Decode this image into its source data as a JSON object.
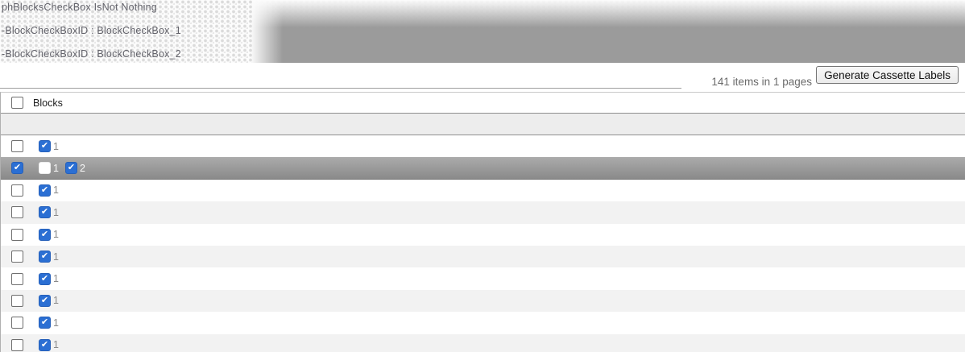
{
  "debug_panel": {
    "lines": [
      "phBlocksCheckBox IsNot Nothing",
      "-BlockCheckBoxID : BlockCheckBox_1",
      "-BlockCheckBoxID : BlockCheckBox_2"
    ]
  },
  "toolbar": {
    "pager_info": "141 items in 1 pages",
    "generate_button_label": "Generate Cassette Labels"
  },
  "grid": {
    "header": {
      "column_label": "Blocks",
      "select_all_checked": false
    },
    "rows": [
      {
        "selected": false,
        "row_checked": false,
        "blocks": [
          {
            "label": "1",
            "checked": true
          }
        ]
      },
      {
        "selected": true,
        "row_checked": true,
        "blocks": [
          {
            "label": "1",
            "checked": false
          },
          {
            "label": "2",
            "checked": true
          }
        ]
      },
      {
        "selected": false,
        "row_checked": false,
        "blocks": [
          {
            "label": "1",
            "checked": true
          }
        ]
      },
      {
        "selected": false,
        "row_checked": false,
        "blocks": [
          {
            "label": "1",
            "checked": true
          }
        ]
      },
      {
        "selected": false,
        "row_checked": false,
        "blocks": [
          {
            "label": "1",
            "checked": true
          }
        ]
      },
      {
        "selected": false,
        "row_checked": false,
        "blocks": [
          {
            "label": "1",
            "checked": true
          }
        ]
      },
      {
        "selected": false,
        "row_checked": false,
        "blocks": [
          {
            "label": "1",
            "checked": true
          }
        ]
      },
      {
        "selected": false,
        "row_checked": false,
        "blocks": [
          {
            "label": "1",
            "checked": true
          }
        ]
      },
      {
        "selected": false,
        "row_checked": false,
        "blocks": [
          {
            "label": "1",
            "checked": true
          }
        ]
      },
      {
        "selected": false,
        "row_checked": false,
        "blocks": [
          {
            "label": "1",
            "checked": true
          }
        ]
      }
    ]
  },
  "colors": {
    "checkbox_blue": "#2b6fd3",
    "selected_row_gray": "#979797",
    "alt_row_gray": "#f2f2f2",
    "header_band_gray": "#9b9b9b"
  }
}
